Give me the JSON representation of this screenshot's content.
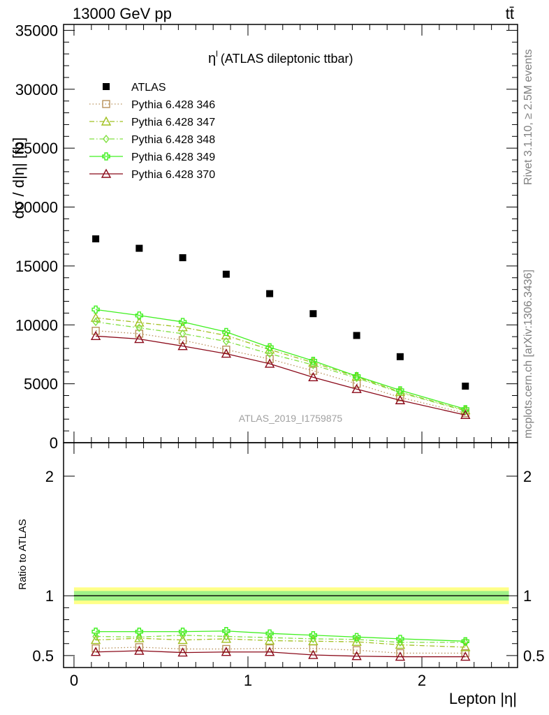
{
  "header": {
    "left": "13000 GeV pp",
    "right": "tt̄"
  },
  "side": {
    "top": "Rivet 3.1.10, ≥ 2.5M events",
    "bottom": "mcplots.cern.ch [arXiv:1306.3436]"
  },
  "watermark": "ATLAS_2019_I1759875",
  "colors": {
    "data": "#000000",
    "p346": "#b8915a",
    "p347": "#a0c020",
    "p348": "#80e040",
    "p349": "#40f020",
    "p370": "#8b0a1a",
    "band_outer": "#ffff88",
    "band_inner": "#88ee88"
  },
  "chart_data": [
    {
      "type": "scatter",
      "title": "η^l (ATLAS dileptonic ttbar)",
      "title_main": "η",
      "title_sup": "l",
      "title_rest": "(ATLAS dileptonic ttbar)",
      "ylabel": "dσ / d|η| [fb]",
      "xlim": [
        -0.06,
        2.55
      ],
      "ylim": [
        0,
        35500
      ],
      "yticks": [
        0,
        5000,
        10000,
        15000,
        20000,
        25000,
        30000,
        35000
      ],
      "ytick_labels": [
        "0",
        "5000",
        "10000",
        "15000",
        "20000",
        "25000",
        "30000",
        "35000"
      ],
      "legend_position": "top-left",
      "x": [
        0.125,
        0.375,
        0.625,
        0.875,
        1.125,
        1.375,
        1.625,
        1.875,
        2.25
      ],
      "series": [
        {
          "name": "ATLAS",
          "key": "data",
          "marker": "square-filled",
          "line": "none",
          "values": [
            17300,
            16500,
            15700,
            14300,
            12650,
            10950,
            9100,
            7300,
            4800
          ]
        },
        {
          "name": "Pythia 6.428 346",
          "key": "p346",
          "marker": "square-open",
          "line": "dotted",
          "values": [
            9500,
            9250,
            8700,
            7900,
            7100,
            6100,
            5000,
            3850,
            2500
          ]
        },
        {
          "name": "Pythia 6.428 347",
          "key": "p347",
          "marker": "triangle-open",
          "line": "dashdot",
          "values": [
            10600,
            10200,
            9800,
            9100,
            7900,
            6800,
            5600,
            4300,
            2750
          ]
        },
        {
          "name": "Pythia 6.428 348",
          "key": "p348",
          "marker": "diamond-open",
          "line": "dashdot",
          "values": [
            10250,
            9750,
            9250,
            8600,
            7550,
            6600,
            5500,
            4250,
            2700
          ]
        },
        {
          "name": "Pythia 6.428 349",
          "key": "p349",
          "marker": "cross-square",
          "line": "solid",
          "values": [
            11300,
            10800,
            10250,
            9400,
            8100,
            6950,
            5650,
            4450,
            2850
          ]
        },
        {
          "name": "Pythia 6.428 370",
          "key": "p370",
          "marker": "triangle-open",
          "line": "solid",
          "values": [
            9050,
            8800,
            8200,
            7550,
            6700,
            5550,
            4550,
            3600,
            2350
          ]
        }
      ]
    },
    {
      "type": "line",
      "ylabel": "Ratio to ATLAS",
      "xlabel": "Lepton |η|",
      "xlim": [
        -0.06,
        2.55
      ],
      "ylim": [
        0.4,
        2.28
      ],
      "xticks": [
        0,
        1,
        2
      ],
      "xtick_labels": [
        "0",
        "1",
        "2"
      ],
      "yticks": [
        0.5,
        1,
        2
      ],
      "ytick_labels": [
        "0.5",
        "1",
        "2"
      ],
      "band_outer": [
        0.93,
        1.07
      ],
      "band_inner": [
        0.96,
        1.04
      ],
      "x": [
        0.125,
        0.375,
        0.625,
        0.875,
        1.125,
        1.375,
        1.625,
        1.875,
        2.25
      ],
      "series": [
        {
          "key": "p346",
          "marker": "square-open",
          "line": "dotted",
          "values": [
            0.56,
            0.57,
            0.555,
            0.555,
            0.56,
            0.56,
            0.545,
            0.52,
            0.52
          ]
        },
        {
          "key": "p347",
          "marker": "triangle-open",
          "line": "dashdot",
          "values": [
            0.63,
            0.645,
            0.63,
            0.64,
            0.625,
            0.62,
            0.615,
            0.59,
            0.57
          ]
        },
        {
          "key": "p348",
          "marker": "diamond-open",
          "line": "dashdot",
          "values": [
            0.66,
            0.655,
            0.67,
            0.66,
            0.65,
            0.64,
            0.635,
            0.61,
            0.61
          ]
        },
        {
          "key": "p349",
          "marker": "cross-square",
          "line": "solid",
          "values": [
            0.7,
            0.7,
            0.7,
            0.705,
            0.685,
            0.67,
            0.655,
            0.64,
            0.62
          ]
        },
        {
          "key": "p370",
          "marker": "triangle-open",
          "line": "solid",
          "values": [
            0.53,
            0.54,
            0.525,
            0.53,
            0.53,
            0.505,
            0.495,
            0.49,
            0.49
          ]
        }
      ]
    }
  ]
}
